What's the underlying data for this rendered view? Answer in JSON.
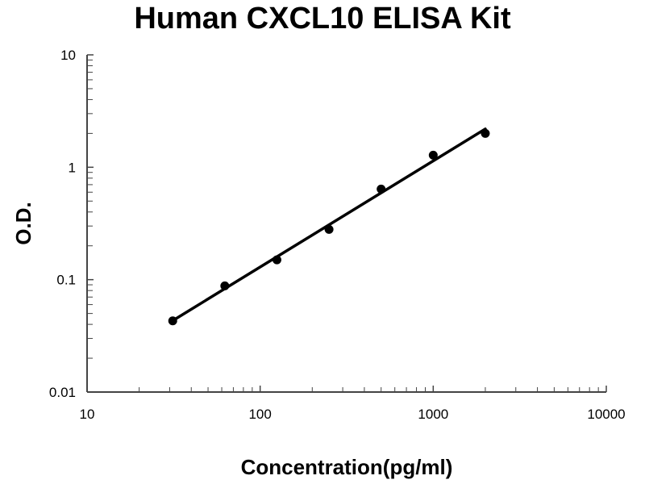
{
  "chart_data": {
    "type": "scatter",
    "title": "Human CXCL10 ELISA Kit",
    "xlabel": "Concentration(pg/ml)",
    "ylabel": "O.D.",
    "x_scale": "log",
    "y_scale": "log",
    "xlim": [
      10,
      10000
    ],
    "ylim": [
      0.01,
      10
    ],
    "x_ticks": [
      "10",
      "100",
      "1000",
      "10000"
    ],
    "y_ticks": [
      "0.01",
      "0.1",
      "1",
      "10"
    ],
    "grid": false,
    "legend": "none",
    "series": [
      {
        "x": [
          31.25,
          62.5,
          125,
          250,
          500,
          1000,
          2000
        ],
        "y": [
          0.043,
          0.088,
          0.15,
          0.28,
          0.64,
          1.28,
          2.0
        ],
        "marker_color": "#000000",
        "trendline": "power fit"
      }
    ]
  }
}
